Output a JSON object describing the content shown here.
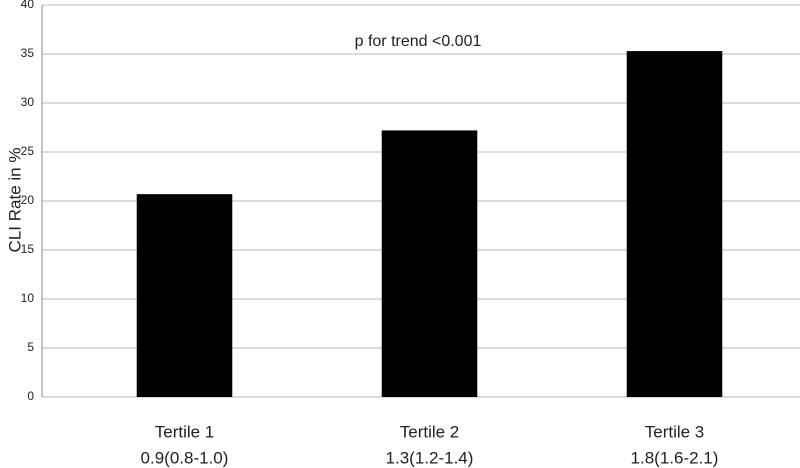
{
  "chart_data": {
    "type": "bar",
    "ylabel": "CLI Rate in %",
    "annotation": "p for trend <0.001",
    "categories": [
      [
        "Tertile 1",
        "0.9(0.8-1.0)"
      ],
      [
        "Tertile 2",
        "1.3(1.2-1.4)"
      ],
      [
        "Tertile 3",
        "1.8(1.6-2.1)"
      ]
    ],
    "values": [
      20.7,
      27.2,
      35.3
    ],
    "color": "#000000",
    "ylim": [
      0,
      40
    ],
    "yticks": [
      0,
      5,
      10,
      15,
      20,
      25,
      30,
      35,
      40
    ],
    "grid": true
  }
}
